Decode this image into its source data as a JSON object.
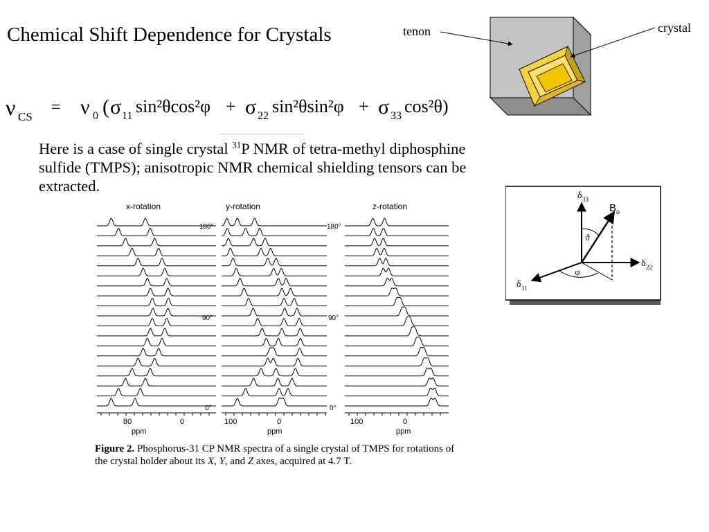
{
  "title": "Chemical Shift Dependence for Crystals",
  "equation": {
    "lhs": "ν",
    "lhs_sub": "CS",
    "equals": "=",
    "nu0": "ν",
    "nu0_sub": "0",
    "t1_sigma": "σ",
    "t1_sub": "11",
    "t1_body": "sin²θcos²φ",
    "plus": "+",
    "t2_sigma": "σ",
    "t2_sub": "22",
    "t2_body": "sin²θsin²φ",
    "t3_sigma": "σ",
    "t3_sub": "33",
    "t3_body": "cos²θ)"
  },
  "description": {
    "part1": "Here is a case of single crystal ",
    "sup": "31",
    "part2": "P NMR of tetra-methyl diphosphine sulfide (TMPS); anisotropic NMR chemical shielding tensors can be extracted."
  },
  "crystal_figure": {
    "label_tenon": "tenon",
    "label_crystal": "crystal"
  },
  "axes_figure": {
    "delta33": "δ",
    "delta33_sub": "33",
    "delta22": "δ",
    "delta22_sub": "22",
    "delta11": "δ",
    "delta11_sub": "11",
    "b0": "B",
    "b0_sub": "o",
    "theta": "ϑ",
    "phi": "φ"
  },
  "spectra_figure": {
    "panels": [
      {
        "title": "x-rotation",
        "tick_labels": [
          "80",
          "0"
        ],
        "axis_label": "ppm"
      },
      {
        "title": "y-rotation",
        "tick_labels": [
          "100",
          "0"
        ],
        "axis_label": "ppm"
      },
      {
        "title": "z-rotation",
        "tick_labels": [
          "100",
          "0"
        ],
        "axis_label": "ppm"
      }
    ],
    "angle_labels": [
      "180°",
      "90°",
      "0°"
    ],
    "trace_count": 19
  },
  "caption": {
    "label": "Figure 2.",
    "text_a": " Phosphorus-31 CP NMR spectra of a single crystal of TMPS for rotations of the crystal holder about its ",
    "x": "X",
    "sep1": ", ",
    "y": "Y",
    "sep2": ", and ",
    "z": "Z",
    "text_b": " axes, acquired at 4.7 T."
  }
}
